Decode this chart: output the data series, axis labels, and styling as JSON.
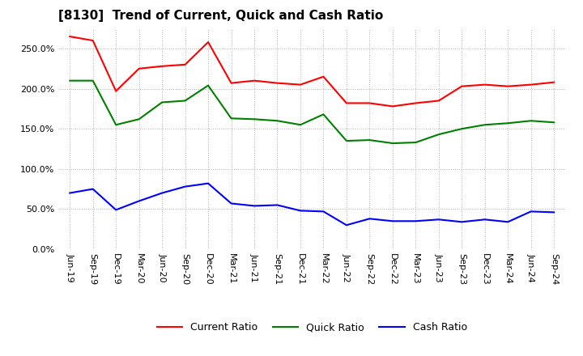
{
  "title": "[8130]  Trend of Current, Quick and Cash Ratio",
  "labels": [
    "Jun-19",
    "Sep-19",
    "Dec-19",
    "Mar-20",
    "Jun-20",
    "Sep-20",
    "Dec-20",
    "Mar-21",
    "Jun-21",
    "Sep-21",
    "Dec-21",
    "Mar-22",
    "Jun-22",
    "Sep-22",
    "Dec-22",
    "Mar-23",
    "Jun-23",
    "Sep-23",
    "Dec-23",
    "Mar-24",
    "Jun-24",
    "Sep-24"
  ],
  "current_ratio": [
    265,
    260,
    197,
    225,
    228,
    230,
    258,
    207,
    210,
    207,
    205,
    215,
    182,
    182,
    178,
    182,
    185,
    203,
    205,
    203,
    205,
    208
  ],
  "quick_ratio": [
    210,
    210,
    155,
    162,
    183,
    185,
    204,
    163,
    162,
    160,
    155,
    168,
    135,
    136,
    132,
    133,
    143,
    150,
    155,
    157,
    160,
    158
  ],
  "cash_ratio": [
    70,
    75,
    49,
    60,
    70,
    78,
    82,
    57,
    54,
    55,
    48,
    47,
    30,
    38,
    35,
    35,
    37,
    34,
    37,
    34,
    47,
    46
  ],
  "current_color": "#ff0000",
  "quick_color": "#008000",
  "cash_color": "#0000ff",
  "ylim": [
    0,
    275
  ],
  "yticks": [
    0,
    50,
    100,
    150,
    200,
    250
  ],
  "background_color": "#ffffff",
  "grid_color": "#b0b0b0",
  "title_fontsize": 11,
  "tick_fontsize": 8,
  "legend_fontsize": 9
}
